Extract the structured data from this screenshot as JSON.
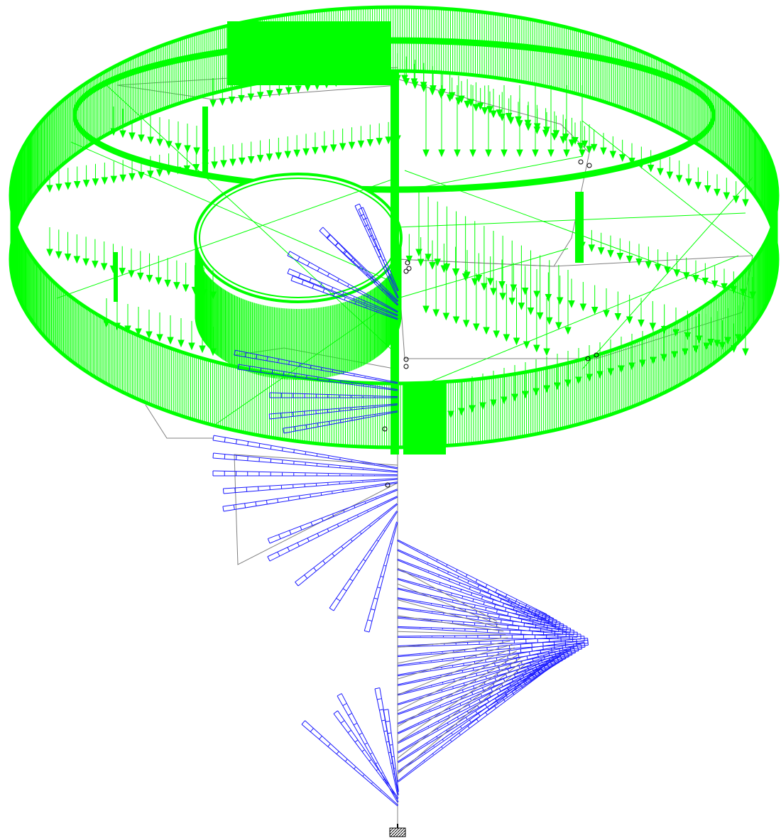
{
  "view": {
    "background": "#ffffff"
  },
  "colors": {
    "structure": "#808080",
    "surface_load": "#00ff00",
    "beam_load": "#1a1aff",
    "support": "#000000",
    "node_marker": "#000000"
  },
  "icons": {
    "support": "fixed-support-icon",
    "node": "node-circle-icon"
  }
}
